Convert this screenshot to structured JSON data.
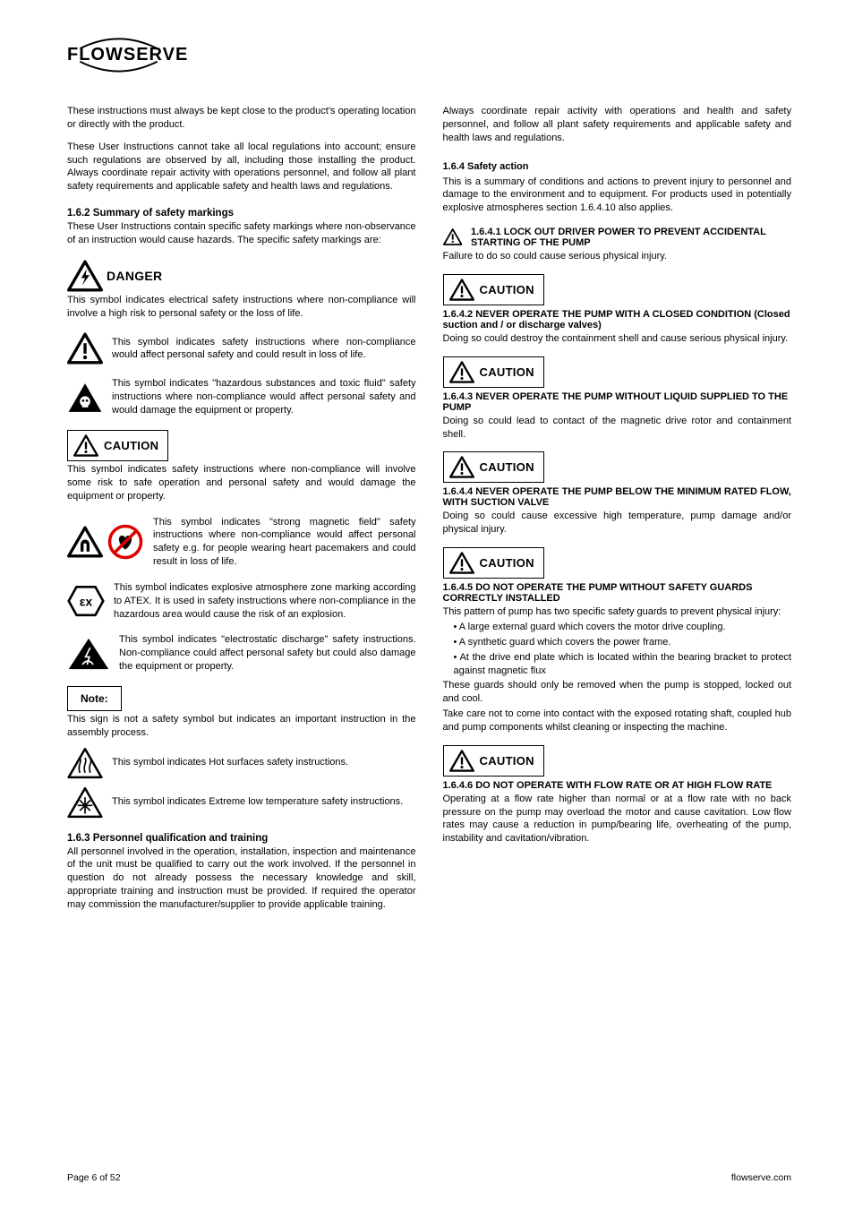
{
  "logo": {
    "text": "FLOWSERVE"
  },
  "left": {
    "intro": "These instructions must always be kept close to the product's operating location or directly with the product.",
    "intro2": "These User Instructions cannot take all local regulations into account; ensure such regulations are observed by all, including those installing the product. Always coordinate repair activity with operations personnel, and follow all plant safety requirements and applicable safety and health laws and regulations.",
    "heading_symbols": "1.6.2 Summary of safety markings",
    "symbols_intro": "These User Instructions contain specific safety markings where non-observance of an instruction would cause hazards. The specific safety markings are:",
    "danger": {
      "label": "DANGER",
      "text": "This symbol indicates electrical safety instructions where non-compliance will involve a high risk to personal safety or the loss of life."
    },
    "warn": {
      "text": "This symbol indicates safety instructions where non-compliance would affect personal safety and could result in loss of life."
    },
    "toxic": {
      "text": "This symbol indicates \"hazardous substances and toxic fluid\" safety instructions where non-compliance would affect personal safety and would damage the equipment or property."
    },
    "caution": {
      "label": "CAUTION",
      "text": "This symbol indicates safety instructions where non-compliance will involve some risk to safe operation and personal safety and would damage the equipment or property."
    },
    "magnet": {
      "text": "This symbol indicates \"strong magnetic field\" safety instructions where non-compliance would affect personal safety e.g. for people wearing heart pacemakers and could result in loss of life."
    },
    "ex": {
      "text": "This symbol indicates explosive atmosphere zone marking according to ATEX. It is used in safety instructions where non-compliance in the hazardous area would cause the risk of an explosion."
    },
    "esd": {
      "text": "This symbol indicates \"electrostatic discharge\" safety instructions. Non-compliance could affect personal safety but could also damage the equipment or property."
    },
    "note": {
      "label": "Note:",
      "text": "This sign is not a safety symbol but indicates an important instruction in the assembly process."
    },
    "hot": {
      "text": "This symbol indicates Hot surfaces safety instructions."
    },
    "cold": {
      "text": "This symbol indicates Extreme low temperature safety instructions."
    },
    "heading_qualification": "1.6.3 Personnel qualification and training",
    "qualification_text": "All personnel involved in the operation, installation, inspection and maintenance of the unit must be qualified to carry out the work involved. If the personnel in question do not already possess the necessary knowledge and skill, appropriate training and instruction must be provided. If required the operator may commission the manufacturer/supplier to provide applicable training."
  },
  "right": {
    "coord": "Always coordinate repair activity with operations and health and safety personnel, and follow all plant safety requirements and applicable safety and health laws and regulations.",
    "heading_actions": "1.6.4 Safety action",
    "actions_intro": "This is a summary of conditions and actions to prevent injury to personnel and damage to the environment and to equipment. For products used in potentially explosive atmospheres section 1.6.4.10 also applies.",
    "lock": {
      "head1": "1.6.4.1",
      "head2": "LOCK OUT DRIVER POWER TO PREVENT ACCIDENTAL STARTING OF THE PUMP",
      "text": "Failure to do so could cause serious physical injury."
    },
    "items": [
      {
        "num": "1.6.4.2",
        "title": "NEVER OPERATE THE PUMP WITH A CLOSED CONDITION (Closed suction and / or discharge valves)",
        "text": "Doing so could destroy the containment shell and cause serious physical injury."
      },
      {
        "num": "1.6.4.3",
        "title": "NEVER OPERATE THE PUMP WITHOUT LIQUID SUPPLIED TO THE PUMP",
        "text": "Doing so could lead to contact of the magnetic drive rotor and containment shell."
      },
      {
        "num": "1.6.4.4",
        "title": "NEVER OPERATE THE PUMP BELOW THE MINIMUM RATED FLOW, WITH SUCTION VALVE",
        "text": "Doing so could cause excessive high temperature, pump damage and/or physical injury."
      },
      {
        "num": "1.6.4.5",
        "title": "DO NOT OPERATE THE PUMP WITHOUT SAFETY GUARDS CORRECTLY INSTALLED",
        "text": "This pattern of pump has two specific safety guards to prevent physical injury:",
        "bullets": [
          "A large external guard which covers the motor drive coupling.",
          "A synthetic guard which covers the power frame.",
          "At the drive end plate which is located within the bearing bracket to protect against magnetic flux"
        ],
        "text2": "These guards should only be removed when the pump is stopped, locked out and cool.",
        "text3": "Take care not to come into contact with the exposed rotating shaft, coupled hub and pump components whilst cleaning or inspecting the machine."
      },
      {
        "num": "1.6.4.6",
        "title": "DO NOT OPERATE WITH FLOW RATE OR AT HIGH FLOW RATE",
        "text": "Operating at a flow rate higher than normal or at a flow rate with no back pressure on the pump may overload the motor and cause cavitation. Low flow rates may cause a reduction in pump/bearing life, overheating of the pump, instability and cavitation/vibration."
      }
    ]
  },
  "footer": {
    "left": "Page 6 of 52",
    "right": "flowserve.com"
  }
}
